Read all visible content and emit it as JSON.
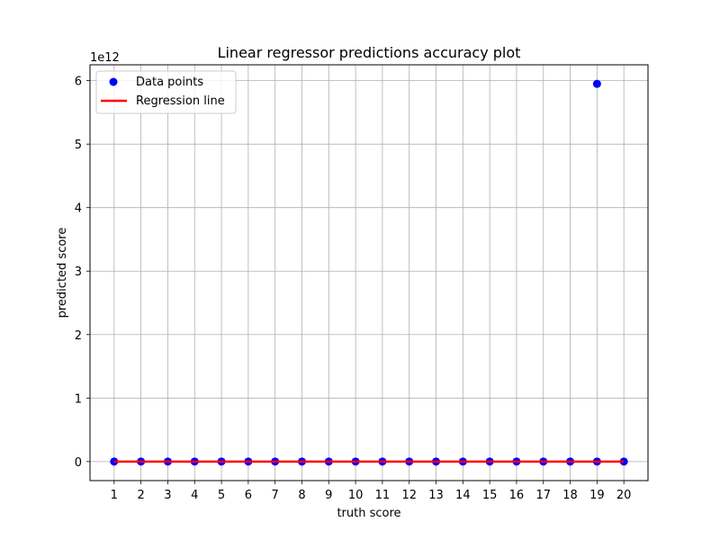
{
  "chart_data": {
    "type": "scatter",
    "title": "Linear regressor predictions accuracy plot",
    "xlabel": "truth score",
    "ylabel": "predicted score",
    "y_scale_label": "1e12",
    "xlim": [
      0.1,
      20.9
    ],
    "ylim": [
      -0.3,
      6.25
    ],
    "x_ticks": [
      1,
      2,
      3,
      4,
      5,
      6,
      7,
      8,
      9,
      10,
      11,
      12,
      13,
      14,
      15,
      16,
      17,
      18,
      19,
      20
    ],
    "y_ticks": [
      0,
      1,
      2,
      3,
      4,
      5,
      6
    ],
    "grid": true,
    "legend_position": "top-left",
    "series": [
      {
        "name": "Data points",
        "kind": "scatter",
        "color": "#0000ff",
        "points": [
          {
            "x": 1,
            "y": 0
          },
          {
            "x": 2,
            "y": 0
          },
          {
            "x": 3,
            "y": 0
          },
          {
            "x": 4,
            "y": 0
          },
          {
            "x": 5,
            "y": 0
          },
          {
            "x": 6,
            "y": 0
          },
          {
            "x": 7,
            "y": 0
          },
          {
            "x": 8,
            "y": 0
          },
          {
            "x": 9,
            "y": 0
          },
          {
            "x": 10,
            "y": 0
          },
          {
            "x": 11,
            "y": 0
          },
          {
            "x": 12,
            "y": 0
          },
          {
            "x": 13,
            "y": 0
          },
          {
            "x": 14,
            "y": 0
          },
          {
            "x": 15,
            "y": 0
          },
          {
            "x": 16,
            "y": 0
          },
          {
            "x": 17,
            "y": 0
          },
          {
            "x": 18,
            "y": 0
          },
          {
            "x": 19,
            "y": 0
          },
          {
            "x": 19,
            "y": 5.95
          },
          {
            "x": 20,
            "y": 0
          }
        ]
      },
      {
        "name": "Regression line",
        "kind": "line",
        "color": "#ff0000",
        "points": [
          {
            "x": 1,
            "y": 0
          },
          {
            "x": 20,
            "y": 0
          }
        ]
      }
    ]
  }
}
